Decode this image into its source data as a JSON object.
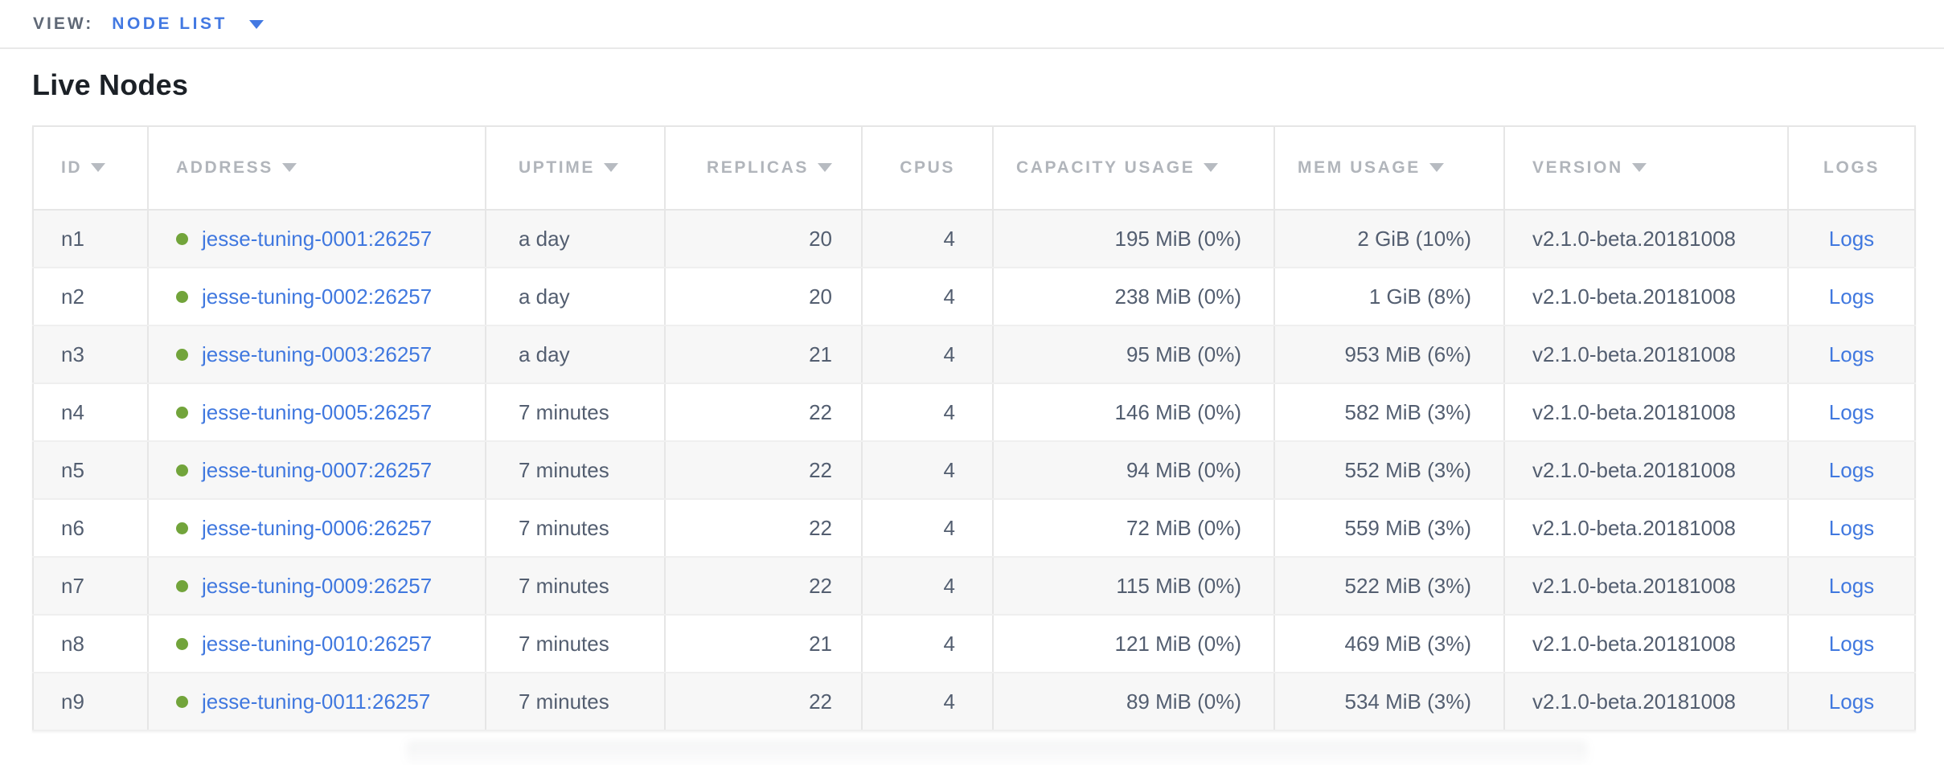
{
  "view_bar": {
    "label": "VIEW:",
    "selected_view": "NODE LIST"
  },
  "page": {
    "title": "Live Nodes"
  },
  "colors": {
    "accent_blue": "#4379e2",
    "link_blue": "#4078df",
    "node_live_green": "#72a43b",
    "header_text_gray": "#b1b5bb",
    "body_text_slate": "#535e70",
    "row_stripe": "#f7f7f7",
    "table_border": "#e6e6e6"
  },
  "table": {
    "columns": [
      {
        "key": "id",
        "label": "ID",
        "sortable": true
      },
      {
        "key": "address",
        "label": "ADDRESS",
        "sortable": true
      },
      {
        "key": "uptime",
        "label": "UPTIME",
        "sortable": true
      },
      {
        "key": "replicas",
        "label": "REPLICAS",
        "sortable": true
      },
      {
        "key": "cpus",
        "label": "CPUS",
        "sortable": false
      },
      {
        "key": "capacity",
        "label": "CAPACITY USAGE",
        "sortable": true
      },
      {
        "key": "mem",
        "label": "MEM USAGE",
        "sortable": true
      },
      {
        "key": "version",
        "label": "VERSION",
        "sortable": true
      },
      {
        "key": "logs",
        "label": "LOGS",
        "sortable": false
      }
    ],
    "rows": [
      {
        "id": "n1",
        "address": "jesse-tuning-0001:26257",
        "status": "live",
        "uptime": "a day",
        "replicas": "20",
        "cpus": "4",
        "capacity": "195 MiB (0%)",
        "mem": "2 GiB (10%)",
        "version": "v2.1.0-beta.20181008",
        "logs": "Logs"
      },
      {
        "id": "n2",
        "address": "jesse-tuning-0002:26257",
        "status": "live",
        "uptime": "a day",
        "replicas": "20",
        "cpus": "4",
        "capacity": "238 MiB (0%)",
        "mem": "1 GiB (8%)",
        "version": "v2.1.0-beta.20181008",
        "logs": "Logs"
      },
      {
        "id": "n3",
        "address": "jesse-tuning-0003:26257",
        "status": "live",
        "uptime": "a day",
        "replicas": "21",
        "cpus": "4",
        "capacity": "95 MiB (0%)",
        "mem": "953 MiB (6%)",
        "version": "v2.1.0-beta.20181008",
        "logs": "Logs"
      },
      {
        "id": "n4",
        "address": "jesse-tuning-0005:26257",
        "status": "live",
        "uptime": "7 minutes",
        "replicas": "22",
        "cpus": "4",
        "capacity": "146 MiB (0%)",
        "mem": "582 MiB (3%)",
        "version": "v2.1.0-beta.20181008",
        "logs": "Logs"
      },
      {
        "id": "n5",
        "address": "jesse-tuning-0007:26257",
        "status": "live",
        "uptime": "7 minutes",
        "replicas": "22",
        "cpus": "4",
        "capacity": "94 MiB (0%)",
        "mem": "552 MiB (3%)",
        "version": "v2.1.0-beta.20181008",
        "logs": "Logs"
      },
      {
        "id": "n6",
        "address": "jesse-tuning-0006:26257",
        "status": "live",
        "uptime": "7 minutes",
        "replicas": "22",
        "cpus": "4",
        "capacity": "72 MiB (0%)",
        "mem": "559 MiB (3%)",
        "version": "v2.1.0-beta.20181008",
        "logs": "Logs"
      },
      {
        "id": "n7",
        "address": "jesse-tuning-0009:26257",
        "status": "live",
        "uptime": "7 minutes",
        "replicas": "22",
        "cpus": "4",
        "capacity": "115 MiB (0%)",
        "mem": "522 MiB (3%)",
        "version": "v2.1.0-beta.20181008",
        "logs": "Logs"
      },
      {
        "id": "n8",
        "address": "jesse-tuning-0010:26257",
        "status": "live",
        "uptime": "7 minutes",
        "replicas": "21",
        "cpus": "4",
        "capacity": "121 MiB (0%)",
        "mem": "469 MiB (3%)",
        "version": "v2.1.0-beta.20181008",
        "logs": "Logs"
      },
      {
        "id": "n9",
        "address": "jesse-tuning-0011:26257",
        "status": "live",
        "uptime": "7 minutes",
        "replicas": "22",
        "cpus": "4",
        "capacity": "89 MiB (0%)",
        "mem": "534 MiB (3%)",
        "version": "v2.1.0-beta.20181008",
        "logs": "Logs"
      }
    ]
  }
}
